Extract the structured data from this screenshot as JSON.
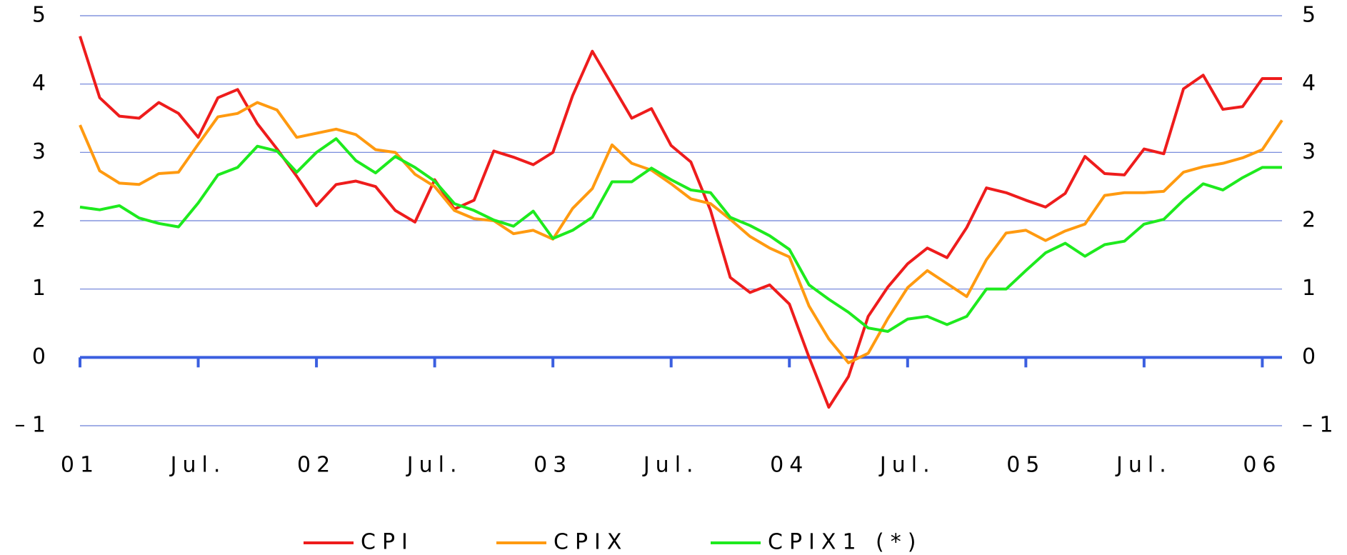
{
  "chart_data": {
    "type": "line",
    "categories": [
      "01",
      null,
      null,
      null,
      null,
      null,
      "Jul.",
      null,
      null,
      null,
      null,
      null,
      "02",
      null,
      null,
      null,
      null,
      null,
      "Jul.",
      null,
      null,
      null,
      null,
      null,
      "03",
      null,
      null,
      null,
      null,
      null,
      "Jul.",
      null,
      null,
      null,
      null,
      null,
      "04",
      null,
      null,
      null,
      null,
      null,
      "Jul.",
      null,
      null,
      null,
      null,
      null,
      "05",
      null,
      null,
      null,
      null,
      null,
      "Jul.",
      null,
      null,
      null,
      null,
      null,
      "06",
      null
    ],
    "series": [
      {
        "name": "CPI",
        "color": "#ee1c1c",
        "values": [
          4.7,
          3.8,
          3.53,
          3.5,
          3.73,
          3.57,
          3.22,
          3.8,
          3.92,
          3.42,
          3.05,
          2.65,
          2.22,
          2.53,
          2.58,
          2.5,
          2.15,
          1.98,
          2.6,
          2.17,
          2.3,
          3.02,
          2.93,
          2.82,
          3.0,
          3.83,
          4.48,
          3.99,
          3.5,
          3.64,
          3.1,
          2.86,
          2.15,
          1.17,
          0.95,
          1.06,
          0.78,
          0.0,
          -0.73,
          -0.28,
          0.6,
          1.03,
          1.37,
          1.6,
          1.46,
          1.9,
          2.48,
          2.41,
          2.3,
          2.2,
          2.4,
          2.94,
          2.69,
          2.67,
          3.05,
          2.98,
          3.93,
          4.13,
          3.63,
          3.67,
          4.08,
          4.08
        ]
      },
      {
        "name": "CPIX",
        "color": "#ff9a10",
        "values": [
          3.4,
          2.73,
          2.55,
          2.53,
          2.69,
          2.71,
          3.12,
          3.52,
          3.57,
          3.73,
          3.62,
          3.22,
          3.28,
          3.34,
          3.26,
          3.04,
          3.0,
          2.68,
          2.5,
          2.15,
          2.03,
          2.0,
          1.81,
          1.86,
          1.73,
          2.18,
          2.47,
          3.11,
          2.84,
          2.74,
          2.54,
          2.32,
          2.25,
          2.02,
          1.77,
          1.6,
          1.47,
          0.75,
          0.27,
          -0.08,
          0.06,
          0.57,
          1.02,
          1.27,
          1.08,
          0.89,
          1.43,
          1.82,
          1.86,
          1.71,
          1.85,
          1.95,
          2.37,
          2.41,
          2.41,
          2.43,
          2.71,
          2.79,
          2.84,
          2.92,
          3.04,
          3.47
        ]
      },
      {
        "name": "CPIX1 (*)",
        "color": "#1eea1e",
        "values": [
          2.2,
          2.16,
          2.22,
          2.04,
          1.96,
          1.91,
          2.26,
          2.67,
          2.78,
          3.09,
          3.02,
          2.71,
          3.0,
          3.2,
          2.88,
          2.7,
          2.94,
          2.78,
          2.58,
          2.25,
          2.15,
          2.01,
          1.92,
          2.14,
          1.74,
          1.86,
          2.05,
          2.57,
          2.57,
          2.77,
          2.6,
          2.45,
          2.41,
          2.05,
          1.93,
          1.78,
          1.58,
          1.06,
          0.85,
          0.66,
          0.43,
          0.38,
          0.56,
          0.6,
          0.48,
          0.6,
          1.0,
          1.0,
          1.27,
          1.53,
          1.67,
          1.48,
          1.65,
          1.7,
          1.95,
          2.02,
          2.3,
          2.54,
          2.45,
          2.63,
          2.78,
          2.78
        ]
      }
    ],
    "ylim": [
      -1,
      5
    ],
    "yticks": [
      {
        "value": -1,
        "label": "– 1"
      },
      0,
      1,
      2,
      3,
      4,
      5
    ],
    "grid": true
  }
}
